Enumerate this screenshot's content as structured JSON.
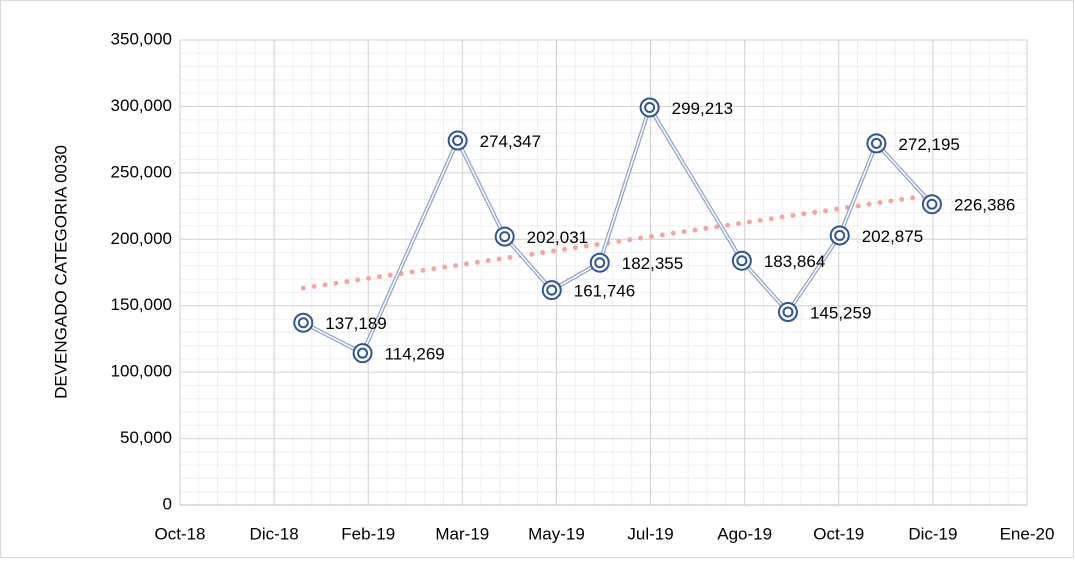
{
  "chart_data": {
    "type": "line",
    "y_label": "DEVENGADO CATEGORIA 0030",
    "x": [
      1.31,
      1.94,
      2.95,
      3.45,
      3.95,
      4.46,
      4.99,
      5.97,
      6.46,
      7.01,
      7.4,
      7.99
    ],
    "series": [
      {
        "color": "#8fa3cc",
        "values": [
          137189,
          114269,
          274347,
          202031,
          161746,
          182355,
          299213,
          183864,
          145259,
          202875,
          272195,
          226386
        ],
        "value_labels": [
          "137,189",
          "114,269",
          "274,347",
          "202,031",
          "161,746",
          "182,355",
          "299,213",
          "183,864",
          "145,259",
          "202,875",
          "272,195",
          "226,386"
        ]
      }
    ],
    "trendline": {
      "type": "linear",
      "color": "#f4a6a3"
    },
    "xlim": [
      0,
      9
    ],
    "xticks": [
      {
        "value": 0,
        "label": "Oct-18"
      },
      {
        "value": 1,
        "label": "Dic-18"
      },
      {
        "value": 2,
        "label": "Feb-19"
      },
      {
        "value": 3,
        "label": "Mar-19"
      },
      {
        "value": 4,
        "label": "May-19"
      },
      {
        "value": 5,
        "label": "Jul-19"
      },
      {
        "value": 6,
        "label": "Ago-19"
      },
      {
        "value": 7,
        "label": "Oct-19"
      },
      {
        "value": 8,
        "label": "Dic-19"
      },
      {
        "value": 9,
        "label": "Ene-20"
      }
    ],
    "ylim": [
      0,
      350000
    ],
    "yticks": [
      0,
      {
        "value": 50000,
        "label": "50,000"
      },
      {
        "value": 100000,
        "label": "100,000"
      },
      {
        "value": 150000,
        "label": "150,000"
      },
      {
        "value": 200000,
        "label": "200,000"
      },
      {
        "value": 250000,
        "label": "250,000"
      },
      {
        "value": 300000,
        "label": "300,000"
      },
      {
        "value": 350000,
        "label": "350,000"
      }
    ],
    "grid": true
  }
}
